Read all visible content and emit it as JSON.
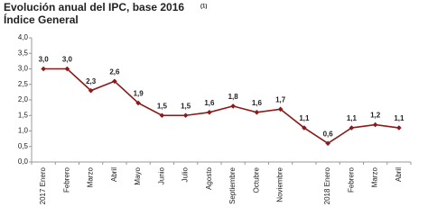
{
  "chart_data": {
    "type": "line",
    "title": "Evolución anual del IPC, base 2016",
    "title_note": "(1)",
    "subtitle": "Índice General",
    "categories": [
      "2017 Enero",
      "Febrero",
      "Marzo",
      "Abril",
      "Mayo",
      "Junio",
      "Julio",
      "Agosto",
      "Septiembre",
      "Octubre",
      "Noviembre",
      null,
      "2018 Enero",
      "Febrero",
      "Marzo",
      "Abril"
    ],
    "series": [
      {
        "color": "#8b1a1a",
        "values": [
          3.0,
          3.0,
          2.3,
          2.6,
          1.9,
          1.5,
          1.5,
          1.6,
          1.8,
          1.6,
          1.7,
          1.1,
          0.6,
          1.1,
          1.2,
          1.1
        ],
        "value_labels": [
          "3,0",
          "3,0",
          "2,3",
          "2,6",
          "1,9",
          "1,5",
          "1,5",
          "1,6",
          "1,8",
          "1,6",
          "1,7",
          "1,1",
          "0,6",
          "1,1",
          "1,2",
          "1,1"
        ]
      }
    ],
    "ylim": [
      0,
      4
    ],
    "yticks": [
      {
        "value": 0,
        "label": "0,0"
      },
      {
        "value": 0.5,
        "label": "0,5"
      },
      {
        "value": 1,
        "label": "1,0"
      },
      {
        "value": 1.5,
        "label": "1,5"
      },
      {
        "value": 2,
        "label": "2,0"
      },
      {
        "value": 2.5,
        "label": "2,5"
      },
      {
        "value": 3,
        "label": "3,0"
      },
      {
        "value": 3.5,
        "label": "3,5"
      },
      {
        "value": 4,
        "label": "4,0"
      }
    ],
    "grid": false
  }
}
